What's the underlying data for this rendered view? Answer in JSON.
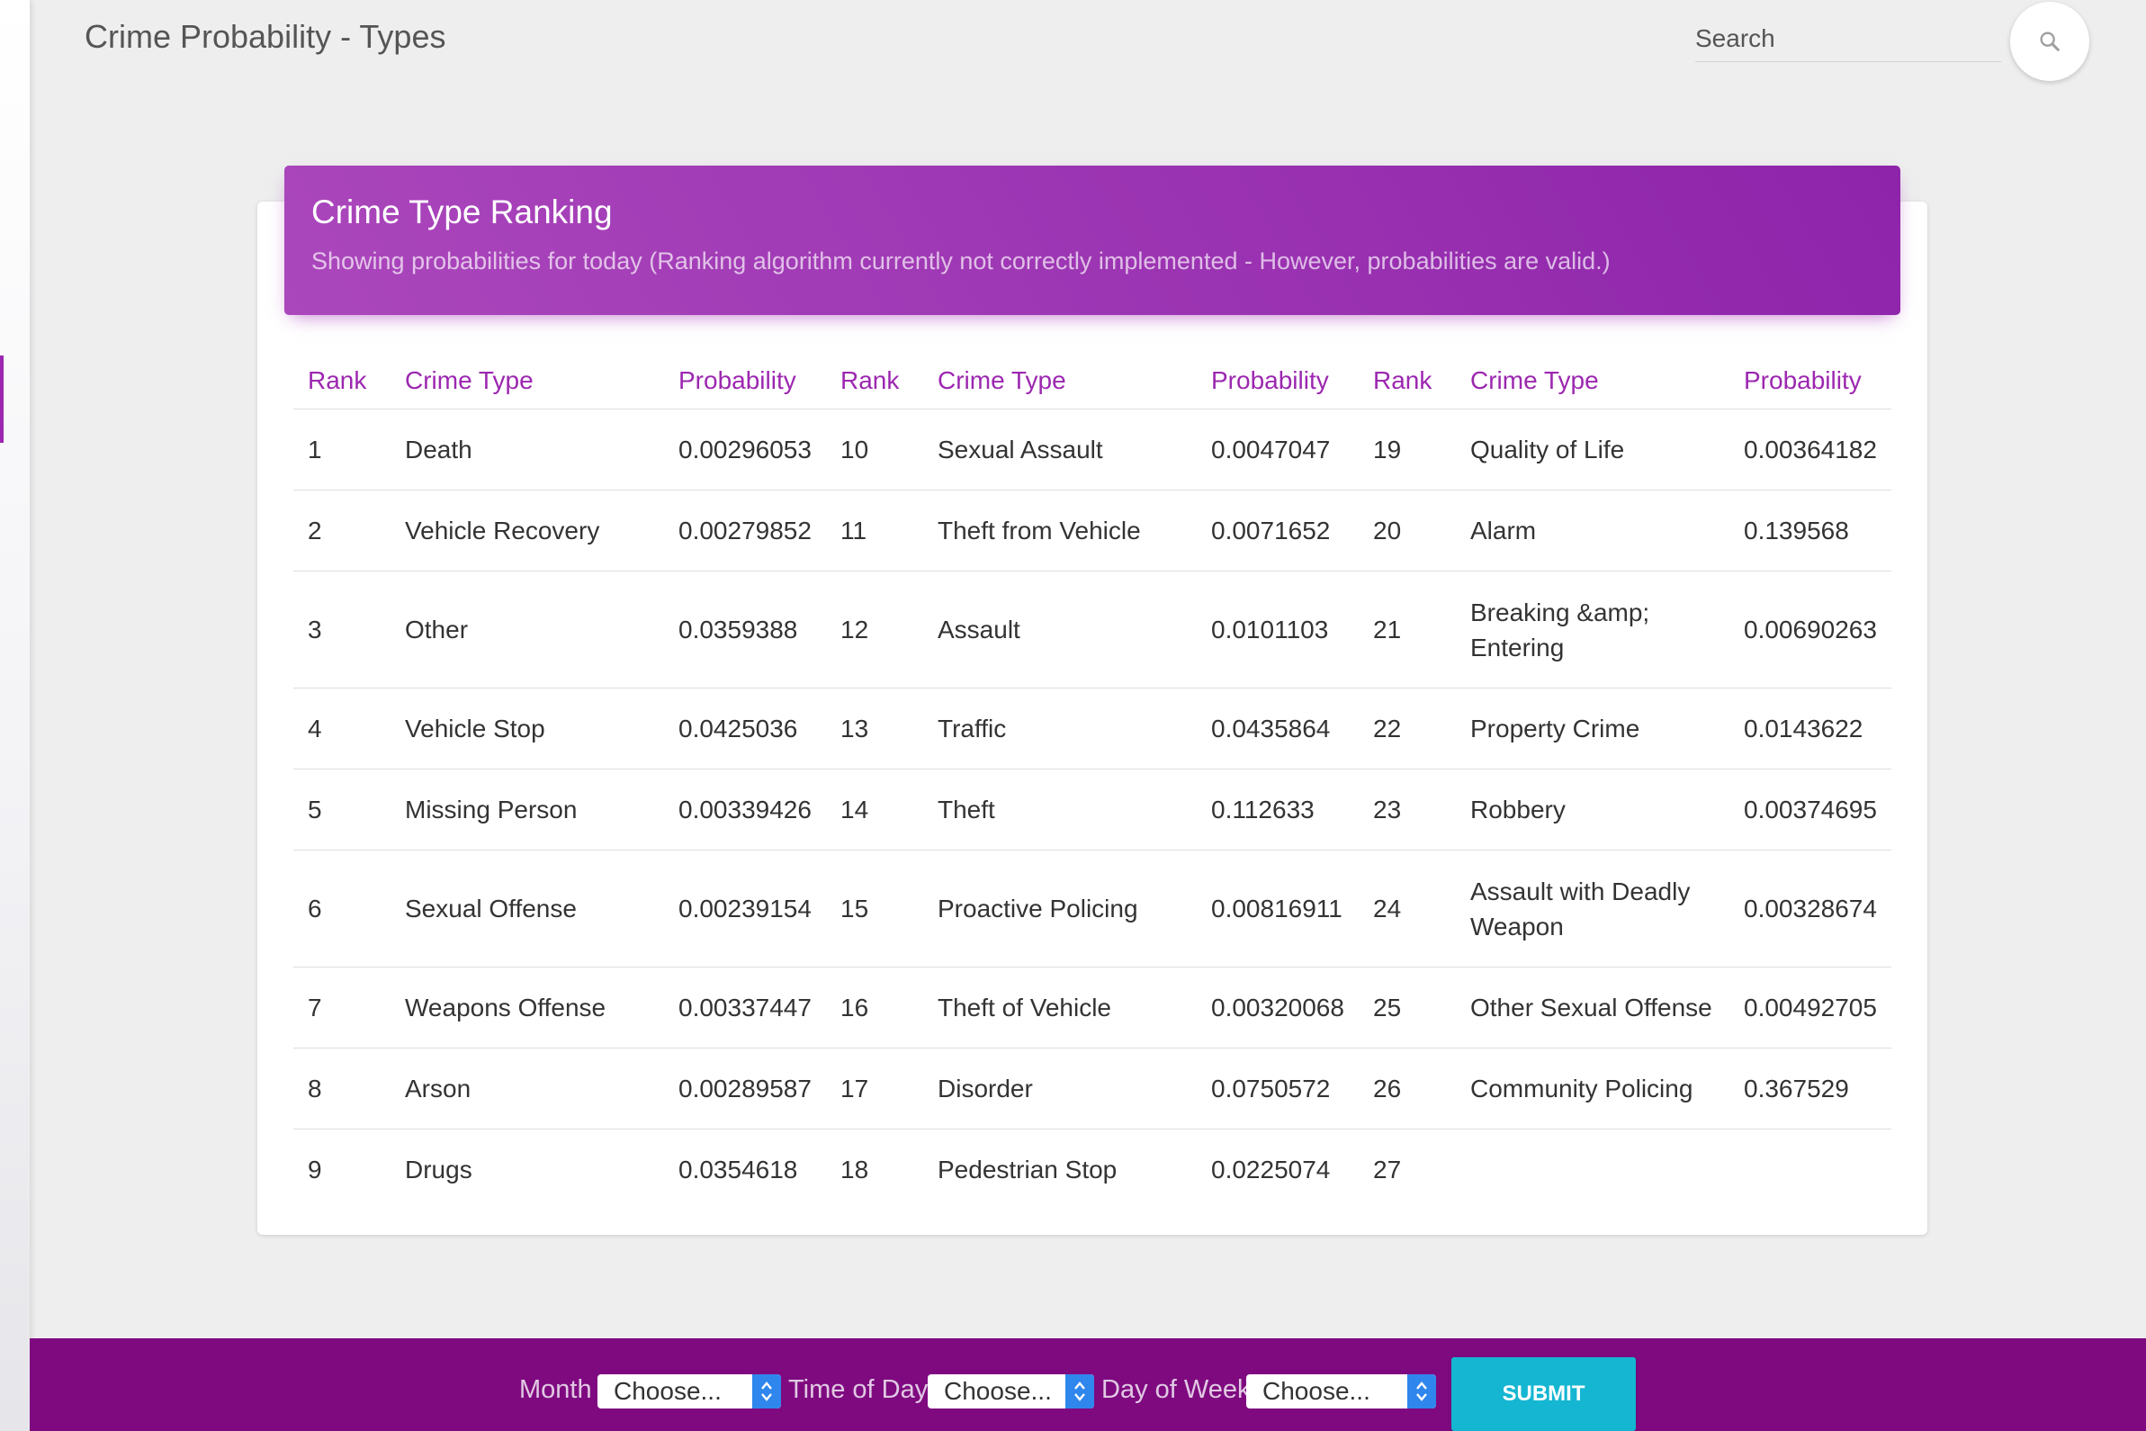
{
  "page": {
    "title": "Crime Probability - Types"
  },
  "search": {
    "placeholder": "Search"
  },
  "card": {
    "title": "Crime Type Ranking",
    "subtitle": "Showing probabilities for today (Ranking algorithm currently not correctly implemented - However, probabilities are valid.)"
  },
  "table": {
    "headers": [
      "Rank",
      "Crime Type",
      "Probability",
      "Rank",
      "Crime Type",
      "Probability",
      "Rank",
      "Crime Type",
      "Probability"
    ],
    "rows": [
      [
        "1",
        "Death",
        "0.00296053",
        "10",
        "Sexual Assault",
        "0.0047047",
        "19",
        "Quality of Life",
        "0.00364182"
      ],
      [
        "2",
        "Vehicle Recovery",
        "0.00279852",
        "11",
        "Theft from Vehicle",
        "0.0071652",
        "20",
        "Alarm",
        "0.139568"
      ],
      [
        "3",
        "Other",
        "0.0359388",
        "12",
        "Assault",
        "0.0101103",
        "21",
        "Breaking &amp; Entering",
        "0.00690263"
      ],
      [
        "4",
        "Vehicle Stop",
        "0.0425036",
        "13",
        "Traffic",
        "0.0435864",
        "22",
        "Property Crime",
        "0.0143622"
      ],
      [
        "5",
        "Missing Person",
        "0.00339426",
        "14",
        "Theft",
        "0.112633",
        "23",
        "Robbery",
        "0.00374695"
      ],
      [
        "6",
        "Sexual Offense",
        "0.00239154",
        "15",
        "Proactive Policing",
        "0.00816911",
        "24",
        "Assault with Deadly Weapon",
        "0.00328674"
      ],
      [
        "7",
        "Weapons Offense",
        "0.00337447",
        "16",
        "Theft of Vehicle",
        "0.00320068",
        "25",
        "Other Sexual Offense",
        "0.00492705"
      ],
      [
        "8",
        "Arson",
        "0.00289587",
        "17",
        "Disorder",
        "0.0750572",
        "26",
        "Community Policing",
        "0.367529"
      ],
      [
        "9",
        "Drugs",
        "0.0354618",
        "18",
        "Pedestrian Stop",
        "0.0225074",
        "27",
        "",
        ""
      ]
    ]
  },
  "filters": {
    "month": {
      "label": "Month",
      "value": "Choose..."
    },
    "time_of_day": {
      "label": "Time of Day",
      "value": "Choose..."
    },
    "day_of_week": {
      "label": "Day of Week",
      "value": "Choose..."
    },
    "submit_label": "SUBMIT"
  },
  "icons": {
    "search": "search-icon",
    "select_arrows": "chevron-up-down-icon"
  },
  "colors": {
    "primary": "#9c27b0",
    "footer": "#7f0a80",
    "submit": "#14b6d2",
    "select_arrow": "#2f86ec"
  }
}
